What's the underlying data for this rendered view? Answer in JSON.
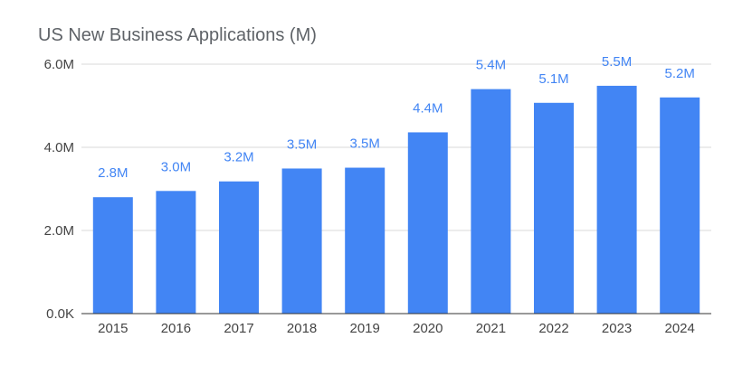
{
  "chart_data": {
    "type": "bar",
    "title": "US New Business Applications (M)",
    "xlabel": "",
    "ylabel": "",
    "categories": [
      "2015",
      "2016",
      "2017",
      "2018",
      "2019",
      "2020",
      "2021",
      "2022",
      "2023",
      "2024"
    ],
    "values": [
      2.8,
      2.95,
      3.18,
      3.49,
      3.51,
      4.36,
      5.4,
      5.07,
      5.48,
      5.2
    ],
    "data_labels": [
      "2.8M",
      "3.0M",
      "3.2M",
      "3.5M",
      "3.5M",
      "4.4M",
      "5.4M",
      "5.1M",
      "5.5M",
      "5.2M"
    ],
    "ylim": [
      0,
      6
    ],
    "yticks": [
      0,
      2,
      4,
      6
    ],
    "ytick_labels": [
      "0.0K",
      "2.0M",
      "4.0M",
      "6.0M"
    ],
    "grid": true,
    "legend": "none",
    "bar_color": "#4285f4",
    "label_color": "#4285f4",
    "grid_color": "#d9d9d9",
    "axis_color": "#333333"
  }
}
